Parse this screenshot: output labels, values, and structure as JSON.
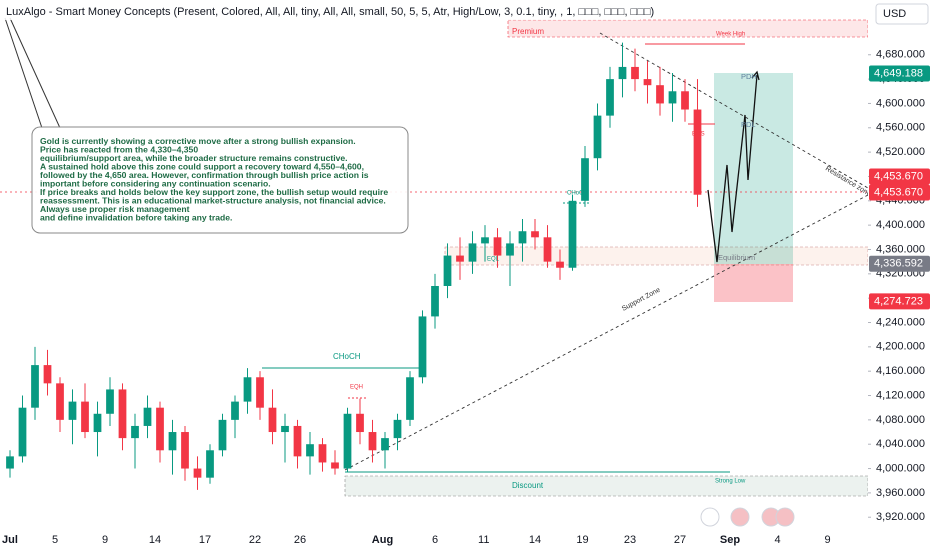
{
  "chart_data": {
    "type": "candlestick",
    "title": "LuxAlgo - Smart Money Concepts (Present, Colored, All, All, tiny, All, All, small, 50, 5, 5, Atr, High/Low, 3, 0.1, tiny, , 1, □□□, □□□, □□□)",
    "currency": "USD",
    "up_color": "#089981",
    "down_color": "#f23645",
    "x": [
      0,
      1,
      2,
      3,
      4,
      5,
      6,
      7,
      8,
      9,
      10,
      11,
      12,
      13,
      14,
      15,
      16,
      17,
      18,
      19,
      20,
      21,
      22,
      23,
      24,
      25,
      26,
      27,
      28,
      29,
      30,
      31,
      32,
      33,
      34,
      35,
      36,
      37,
      38,
      39,
      40,
      41,
      42,
      43,
      44,
      45,
      46,
      47,
      48,
      49,
      50,
      51,
      52,
      53,
      54,
      55
    ],
    "open": [
      4000,
      4020,
      4100,
      4170,
      4140,
      4080,
      4110,
      4060,
      4090,
      4130,
      4050,
      4070,
      4100,
      4030,
      4060,
      4000,
      3985,
      4030,
      4080,
      4110,
      4150,
      4100,
      4060,
      4070,
      4020,
      4040,
      4010,
      4000,
      4090,
      4060,
      4030,
      4050,
      4080,
      4150,
      4250,
      4300,
      4350,
      4340,
      4370,
      4380,
      4350,
      4370,
      4390,
      4380,
      4340,
      4330,
      4440,
      4510,
      4580,
      4640,
      4660,
      4640,
      4630,
      4600,
      4620,
      4590
    ],
    "high": [
      4030,
      4120,
      4200,
      4195,
      4150,
      4130,
      4140,
      4110,
      4150,
      4140,
      4090,
      4120,
      4110,
      4080,
      4070,
      4020,
      4040,
      4090,
      4120,
      4165,
      4160,
      4130,
      4090,
      4080,
      4060,
      4050,
      4030,
      4100,
      4115,
      4080,
      4060,
      4090,
      4160,
      4260,
      4320,
      4370,
      4380,
      4390,
      4400,
      4395,
      4390,
      4410,
      4410,
      4400,
      4360,
      4450,
      4530,
      4600,
      4660,
      4700,
      4690,
      4670,
      4660,
      4650,
      4640,
      4640
    ],
    "low": [
      3985,
      4010,
      4080,
      4120,
      4060,
      4040,
      4050,
      4020,
      4070,
      4030,
      4000,
      4050,
      4010,
      3990,
      3980,
      3965,
      3975,
      4020,
      4050,
      4090,
      4080,
      4040,
      4010,
      4000,
      3990,
      3995,
      3990,
      3995,
      4040,
      4010,
      4000,
      4030,
      4070,
      4140,
      4230,
      4280,
      4310,
      4320,
      4340,
      4330,
      4300,
      4340,
      4360,
      4330,
      4310,
      4325,
      4430,
      4490,
      4560,
      4610,
      4620,
      4600,
      4580,
      4570,
      4570,
      4430
    ],
    "close": [
      4020,
      4100,
      4170,
      4140,
      4080,
      4110,
      4060,
      4090,
      4130,
      4050,
      4070,
      4100,
      4030,
      4060,
      4000,
      3985,
      4030,
      4080,
      4110,
      4150,
      4100,
      4060,
      4070,
      4020,
      4040,
      4010,
      4000,
      4090,
      4060,
      4030,
      4050,
      4080,
      4150,
      4250,
      4300,
      4350,
      4340,
      4370,
      4380,
      4350,
      4370,
      4390,
      4380,
      4340,
      4330,
      4440,
      4510,
      4580,
      4640,
      4660,
      4640,
      4630,
      4600,
      4620,
      4590,
      4450
    ],
    "xlim": [
      -0.8,
      68.64
    ],
    "ylim": [
      3899,
      4770
    ],
    "xticks": [
      {
        "value": 0,
        "label": "Jul"
      },
      {
        "value": 3.6,
        "label": "5"
      },
      {
        "value": 7.6,
        "label": "9"
      },
      {
        "value": 11.6,
        "label": "14"
      },
      {
        "value": 15.6,
        "label": "17"
      },
      {
        "value": 19.6,
        "label": "22"
      },
      {
        "value": 23.2,
        "label": "26"
      },
      {
        "value": 29.8,
        "label": "Aug"
      },
      {
        "value": 34,
        "label": "6"
      },
      {
        "value": 37.9,
        "label": "11"
      },
      {
        "value": 42,
        "label": "14"
      },
      {
        "value": 45.8,
        "label": "19"
      },
      {
        "value": 49.6,
        "label": "23"
      },
      {
        "value": 53.6,
        "label": "27"
      },
      {
        "value": 57.6,
        "label": "Sep"
      },
      {
        "value": 61.4,
        "label": "4"
      },
      {
        "value": 65.4,
        "label": "9"
      }
    ],
    "yticks": [
      {
        "value": 3920,
        "label": "3,920.000"
      },
      {
        "value": 3960,
        "label": "3,960.000"
      },
      {
        "value": 4000,
        "label": "4,000.000"
      },
      {
        "value": 4040,
        "label": "4,040.000"
      },
      {
        "value": 4080,
        "label": "4,080.000"
      },
      {
        "value": 4120,
        "label": "4,120.000"
      },
      {
        "value": 4160,
        "label": "4,160.000"
      },
      {
        "value": 4200,
        "label": "4,200.000"
      },
      {
        "value": 4240,
        "label": "4,240.000"
      },
      {
        "value": 4280,
        "label": "4,280.000"
      },
      {
        "value": 4320,
        "label": "4,320.000"
      },
      {
        "value": 4360,
        "label": "4,360.000"
      },
      {
        "value": 4400,
        "label": "4,400.000"
      },
      {
        "value": 4440,
        "label": "4,440.000"
      },
      {
        "value": 4480,
        "label": "4,480.000"
      },
      {
        "value": 4520,
        "label": "4,520.000"
      },
      {
        "value": 4560,
        "label": "4,560.000"
      },
      {
        "value": 4600,
        "label": "4,600.000"
      },
      {
        "value": 4640,
        "label": "4,640.000"
      },
      {
        "value": 4680,
        "label": "4,680.000"
      }
    ],
    "price_labels": [
      {
        "value": 4649.188,
        "label": "4,649.188",
        "color": "#089981"
      },
      {
        "value": 4453.67,
        "label": "4,453.670",
        "color": "#f23645"
      },
      {
        "value": 4453.67,
        "label": "4,453.670",
        "color": "#f23645"
      },
      {
        "value": 4336.592,
        "label": "4,336.592",
        "color": "#787b86"
      },
      {
        "value": 4274.723,
        "label": "4,274.723",
        "color": "#f23645"
      }
    ],
    "annotation": [
      "Gold is currently showing a corrective move after a strong bullish expansion.",
      "Price has reacted from the 4,330–4,350",
      "equilibrium/support area, while the broader structure remains constructive.",
      "A sustained hold above this zone could support a recovery toward 4,550–4,600,",
      " followed by the 4,650 area. However, confirmation through bullish price action is",
      "important before considering any continuation scenario.",
      "If price breaks and holds below the key support zone, the bullish setup would require",
      "reassessment. This is an educational market-structure analysis, not financial advice.",
      "Always use proper risk management",
      " and define invalidation before taking any trade."
    ],
    "labels": {
      "premium": "Premium",
      "week_high": "Week High",
      "discount": "Discount",
      "strong_low": "Strong Low",
      "equilibrium": "Equilibrium",
      "eql": "EQL",
      "choch_main": "CHoCH",
      "eqh": "EQH",
      "choch_small": "CHoCH",
      "bos": "BOS",
      "pdh": "PDH",
      "pdl": "PDL",
      "support": "Support Zone",
      "resistance": "Resistance zone"
    }
  }
}
